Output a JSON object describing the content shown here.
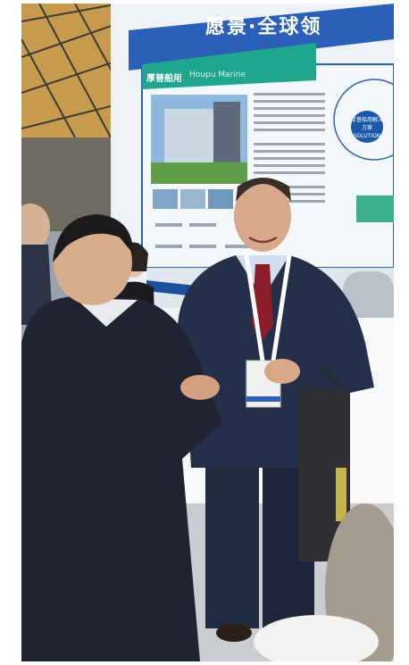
{
  "scene": {
    "description_free": true,
    "colors": {
      "banner_blue": "#2b60b8",
      "panel_teal": "#20a58f",
      "suit_navy": "#222a3f",
      "tie_red": "#8e1d2b",
      "ceiling_gold": "#b48a3a"
    }
  },
  "signage": {
    "banner_title": "愿景·全球领",
    "panel_brand_cn": "厚普船用",
    "panel_brand_en": "Houpu Marine",
    "solution_badge_cn": "厚普船用解决方案",
    "solution_badge_en": "SOLUTION"
  }
}
